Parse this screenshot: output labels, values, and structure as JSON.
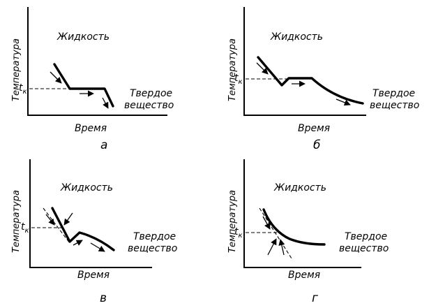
{
  "panels": [
    {
      "letter": "а",
      "y_label": "Температура",
      "x_label": "Время",
      "tk_main": "t",
      "tk_sub": "к",
      "liquid": "Жидкость",
      "solid_1": "Твердое",
      "solid_2": "вещество"
    },
    {
      "letter": "б",
      "y_label": "Температура",
      "x_label": "Время",
      "tk_main": "t",
      "tk_sub": "к",
      "liquid": "Жидкость",
      "solid_1": "Твердое",
      "solid_2": "вещество"
    },
    {
      "letter": "в",
      "y_label": "Температура",
      "x_label": "Время",
      "tk_main": "t",
      "tk_sub": "к",
      "liquid": "Жидкость",
      "solid_1": "Твердое",
      "solid_2": "вещество"
    },
    {
      "letter": "г",
      "y_label": "Температура",
      "x_label": "Время",
      "tk_main": "t",
      "tk_sub": "к",
      "liquid": "Жидкость",
      "solid_1": "Твердое",
      "solid_2": "вещество"
    }
  ]
}
